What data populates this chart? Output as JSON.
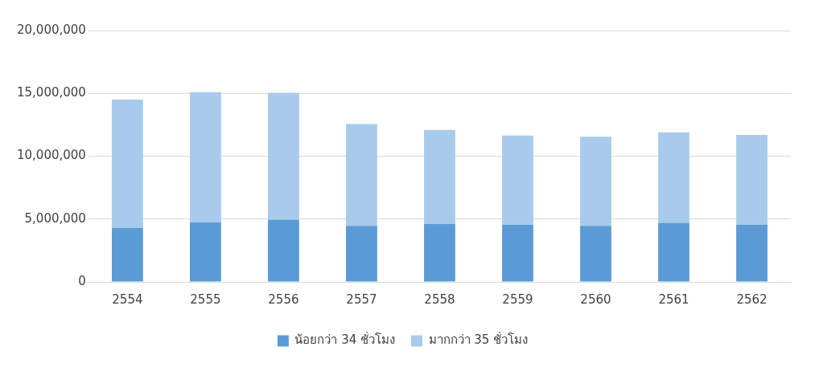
{
  "chart_data": {
    "type": "bar",
    "stacked": true,
    "categories": [
      "2554",
      "2555",
      "2556",
      "2557",
      "2558",
      "2559",
      "2560",
      "2561",
      "2562"
    ],
    "series": [
      {
        "name": "น้อยกว่า 34 ชั่วโมง",
        "color": "#5b9bd5",
        "values": [
          4300000.0,
          4750000.0,
          4950000.0,
          4450000.0,
          4600000.0,
          4550000.0,
          4450000.0,
          4700000.0,
          4550000.0
        ]
      },
      {
        "name": "มากกว่า 35 ชั่วโมง",
        "color": "#a9cbeb",
        "values": [
          10200000.0,
          10350000.0,
          10100000.0,
          8100000.0,
          7500000.0,
          7100000.0,
          7100000.0,
          7200000.0,
          7150000.0
        ]
      }
    ],
    "ylim": [
      0,
      20000000
    ],
    "yticks": [
      {
        "value": 0,
        "label": "0"
      },
      {
        "value": 5000000,
        "label": "5,000,000"
      },
      {
        "value": 10000000,
        "label": "10,000,000"
      },
      {
        "value": 15000000,
        "label": "15,000,000"
      },
      {
        "value": 20000000,
        "label": "20,000,000"
      }
    ],
    "grid": "y",
    "legend": "bottom"
  }
}
